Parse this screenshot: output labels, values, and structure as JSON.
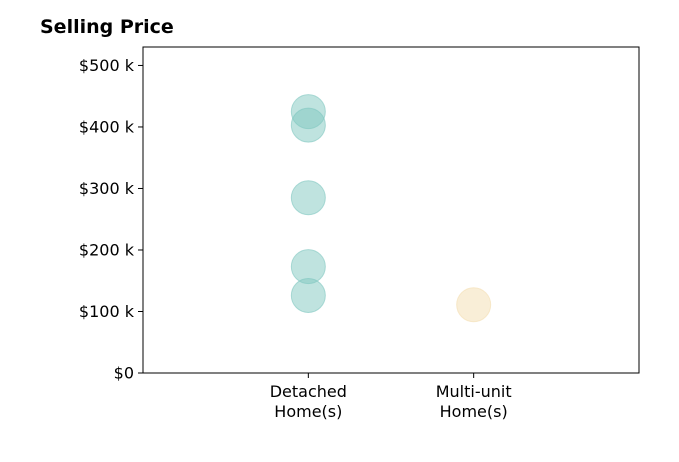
{
  "chart_data": {
    "type": "scatter",
    "title": "Selling Price",
    "xlabel": "",
    "ylabel": "",
    "categories": [
      "Detached\nHome(s)",
      "Multi-unit\nHome(s)"
    ],
    "ylim": [
      0,
      530
    ],
    "yticks": [
      0,
      100,
      200,
      300,
      400,
      500
    ],
    "ytick_labels": [
      "$0",
      "$100 k",
      "$200 k",
      "$300 k",
      "$400 k",
      "$500 k"
    ],
    "grid": false,
    "series": [
      {
        "category": "Detached\nHome(s)",
        "values": [
          425,
          403,
          285,
          173,
          126
        ],
        "color": "#7fc7c0"
      },
      {
        "category": "Multi-unit\nHome(s)",
        "values": [
          111
        ],
        "color": "#f4deb0"
      }
    ]
  }
}
